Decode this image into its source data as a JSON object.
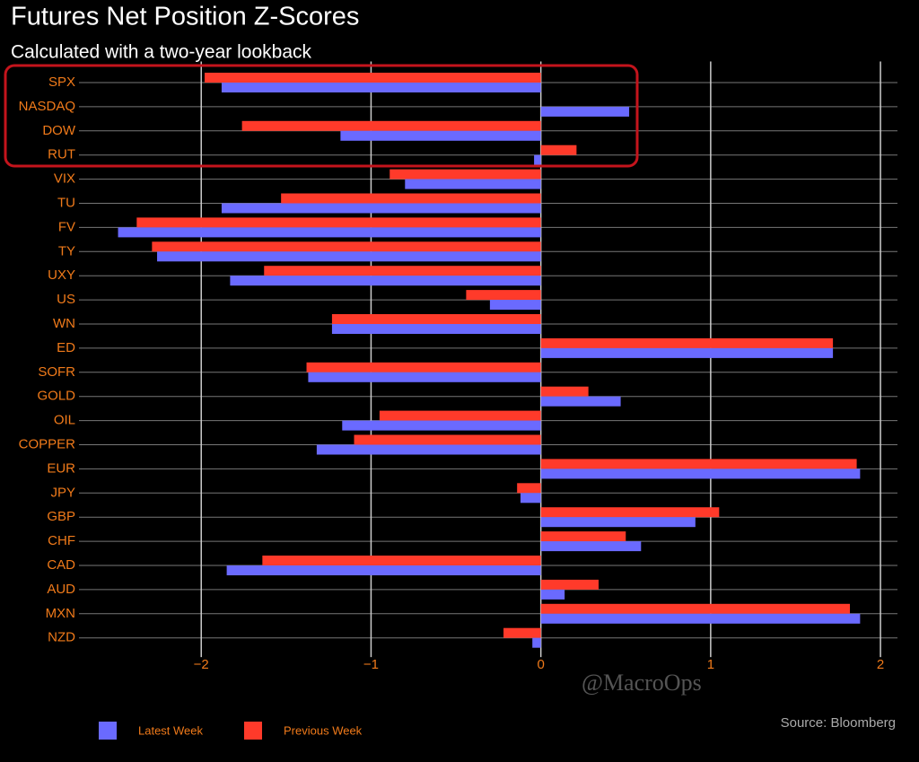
{
  "chart_data": {
    "type": "hbar",
    "title": "Futures Net Position Z-Scores",
    "subtitle": "Calculated with a two-year lookback",
    "source": "Source: Bloomberg",
    "watermark": "@MacroOps",
    "categories": [
      "SPX",
      "NASDAQ",
      "DOW",
      "RUT",
      "VIX",
      "TU",
      "FV",
      "TY",
      "UXY",
      "US",
      "WN",
      "ED",
      "SOFR",
      "GOLD",
      "OIL",
      "COPPER",
      "EUR",
      "JPY",
      "GBP",
      "CHF",
      "CAD",
      "AUD",
      "MXN",
      "NZD"
    ],
    "series": [
      {
        "name": "Latest Week",
        "color": "#6a6aff",
        "values": [
          -1.88,
          0.52,
          -1.18,
          -0.04,
          -0.8,
          -1.88,
          -2.49,
          -2.26,
          -1.83,
          -0.3,
          -1.23,
          1.72,
          -1.37,
          0.47,
          -1.17,
          -1.32,
          1.88,
          -0.12,
          0.91,
          0.59,
          -1.85,
          0.14,
          1.88,
          -0.05
        ]
      },
      {
        "name": "Previous Week",
        "color": "#ff3a2a",
        "values": [
          -1.98,
          0,
          -1.76,
          0.21,
          -0.89,
          -1.53,
          -2.38,
          -2.29,
          -1.63,
          -0.44,
          -1.23,
          1.72,
          -1.38,
          0.28,
          -0.95,
          -1.1,
          1.86,
          -0.14,
          1.05,
          0.5,
          -1.64,
          0.34,
          1.82,
          -0.22
        ]
      }
    ],
    "xlim": [
      -2.72,
      2.1
    ],
    "xticks": [
      {
        "value": -2,
        "label": "−2"
      },
      {
        "value": -1,
        "label": "−1"
      },
      0,
      1,
      2
    ],
    "grid": true
  }
}
